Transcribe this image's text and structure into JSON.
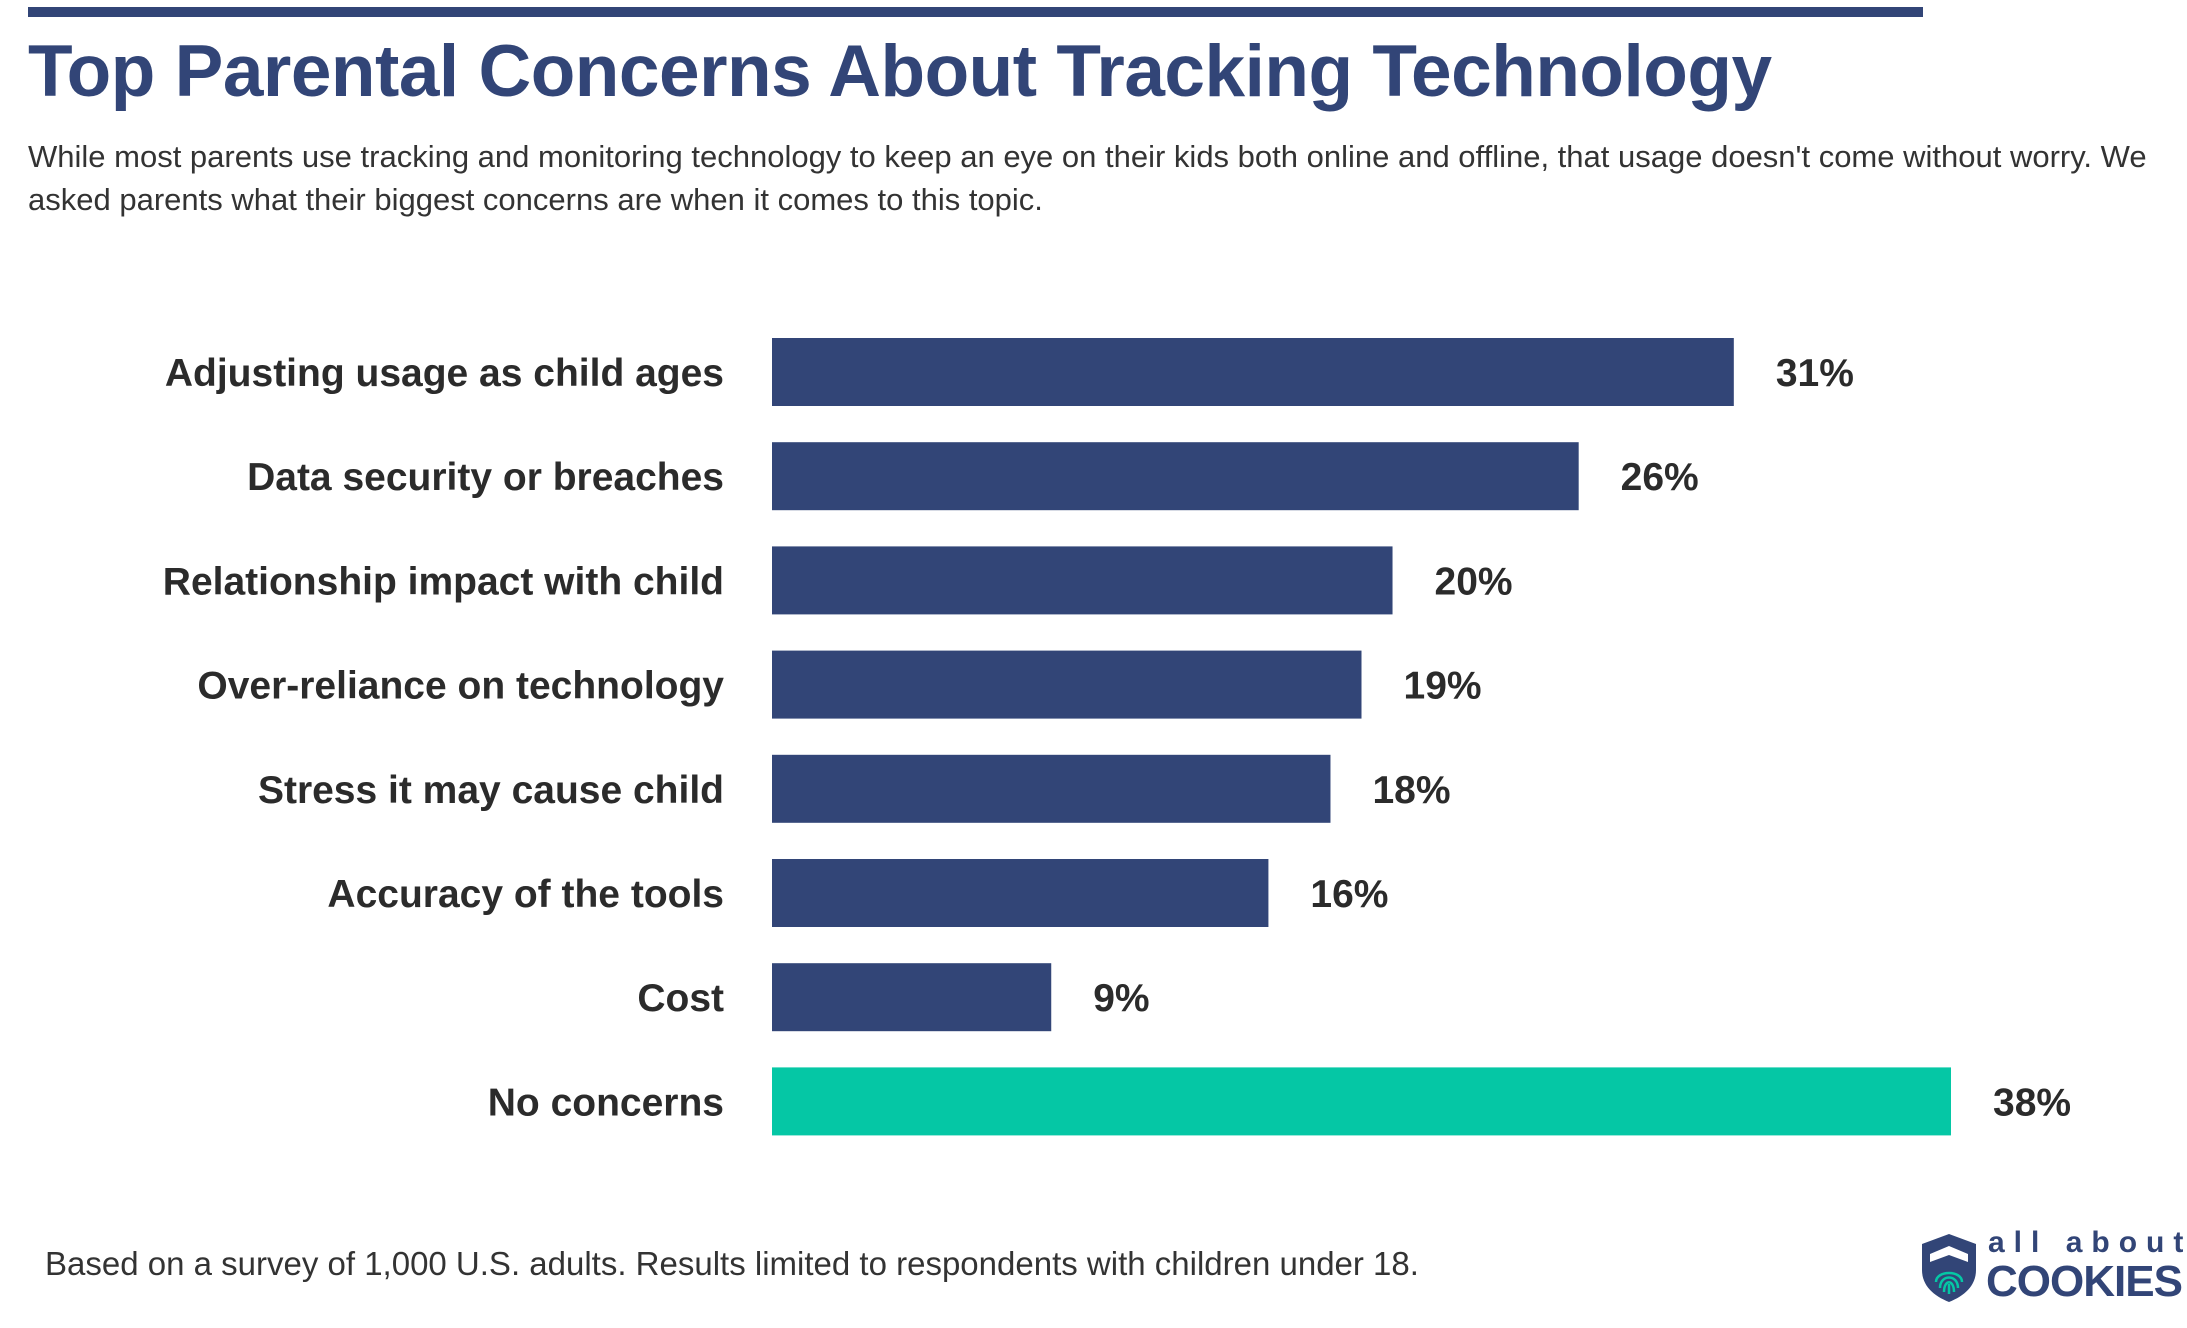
{
  "title": "Top Parental Concerns About Tracking Technology",
  "subtitle": "While most parents use tracking and monitoring technology to keep an eye on their kids both online and offline, that usage doesn't come without worry. We asked parents what their biggest concerns are when it comes to this topic.",
  "footer": "Based on a survey of 1,000 U.S. adults. Results limited to respondents with children under 18.",
  "logo": {
    "line1": "all about",
    "line2": "COOKIES"
  },
  "colors": {
    "primary": "#324577",
    "highlight": "#05c7a5",
    "text": "#2b2b2b"
  },
  "chart_data": {
    "type": "bar",
    "orientation": "horizontal",
    "title": "Top Parental Concerns About Tracking Technology",
    "categories": [
      "Adjusting usage as child ages",
      "Data security or breaches",
      "Relationship impact with child",
      "Over-reliance on technology",
      "Stress it may cause child",
      "Accuracy of the tools",
      "Cost",
      "No concerns"
    ],
    "values": [
      31,
      26,
      20,
      19,
      18,
      16,
      9,
      38
    ],
    "value_labels": [
      "31%",
      "26%",
      "20%",
      "19%",
      "18%",
      "16%",
      "9%",
      "38%"
    ],
    "unit": "%",
    "highlight_category": "No concerns",
    "xlim": [
      0,
      38
    ],
    "grid": false,
    "axes_visible": false
  }
}
